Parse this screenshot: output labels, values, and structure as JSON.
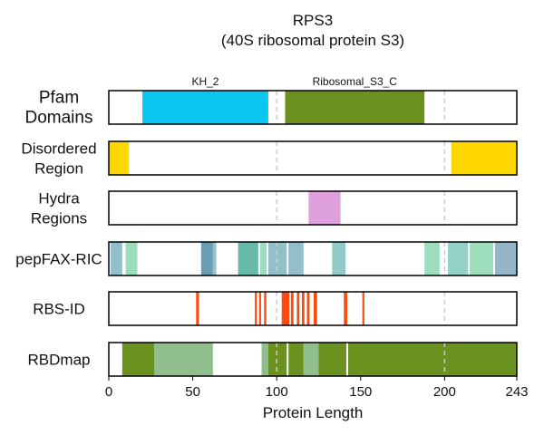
{
  "chart_data": {
    "type": "feature-track",
    "title": "RPS3",
    "subtitle": "(40S ribosomal protein S3)",
    "xlabel": "Protein Length",
    "xlim": [
      0,
      243
    ],
    "xticks": [
      0,
      50,
      100,
      150,
      200,
      243
    ],
    "reference_lines": [
      100,
      200
    ],
    "tracks": [
      {
        "id": "pfam",
        "label": [
          "Pfam",
          "Domains"
        ],
        "segments": [
          {
            "start": 20,
            "end": 95,
            "color": "#0BC6EE",
            "label": "KH_2"
          },
          {
            "start": 105,
            "end": 188,
            "color": "#6B921E",
            "label": "Ribosomal_S3_C"
          }
        ]
      },
      {
        "id": "disordered",
        "label": [
          "Disordered",
          "Region"
        ],
        "segments": [
          {
            "start": 0,
            "end": 12,
            "color": "#FFD700"
          },
          {
            "start": 204,
            "end": 243,
            "color": "#FFD700"
          }
        ]
      },
      {
        "id": "hydra",
        "label": [
          "Hydra",
          "Regions"
        ],
        "segments": [
          {
            "start": 119,
            "end": 138,
            "color": "#DDA0DD"
          }
        ]
      },
      {
        "id": "pepfax",
        "label": [
          "pepFAX-RIC"
        ],
        "segments": [
          {
            "start": 1,
            "end": 8,
            "color": "#93BFC9"
          },
          {
            "start": 10,
            "end": 17,
            "color": "#9DDDBE"
          },
          {
            "start": 55,
            "end": 62,
            "color": "#6A9DB2"
          },
          {
            "start": 62,
            "end": 64,
            "color": "#93BFC9"
          },
          {
            "start": 77,
            "end": 89,
            "color": "#67BAA8"
          },
          {
            "start": 90,
            "end": 94,
            "color": "#9DDDBE"
          },
          {
            "start": 95,
            "end": 106,
            "color": "#93BFC9"
          },
          {
            "start": 107,
            "end": 116,
            "color": "#93BFC9"
          },
          {
            "start": 133,
            "end": 141,
            "color": "#93CAC7"
          },
          {
            "start": 188,
            "end": 197,
            "color": "#9DDDBE"
          },
          {
            "start": 202,
            "end": 214,
            "color": "#93D2C4"
          },
          {
            "start": 215,
            "end": 229,
            "color": "#9DDDBE"
          },
          {
            "start": 230,
            "end": 243,
            "color": "#96B5C9"
          }
        ]
      },
      {
        "id": "rbsid",
        "label": [
          "RBS-ID"
        ],
        "segments": [
          {
            "start": 52,
            "end": 53.7,
            "color": "#FF4A0D"
          },
          {
            "start": 87,
            "end": 88.2,
            "color": "#FF4A0D"
          },
          {
            "start": 89.5,
            "end": 90.7,
            "color": "#FF4A0D"
          },
          {
            "start": 92.5,
            "end": 93.8,
            "color": "#FF4A0D"
          },
          {
            "start": 103,
            "end": 107.5,
            "color": "#FF4A0D"
          },
          {
            "start": 108.5,
            "end": 110,
            "color": "#FF4A0D"
          },
          {
            "start": 112,
            "end": 113.5,
            "color": "#FF4A0D"
          },
          {
            "start": 115,
            "end": 116.5,
            "color": "#FF4A0D"
          },
          {
            "start": 118,
            "end": 119.5,
            "color": "#FF4A0D"
          },
          {
            "start": 122,
            "end": 124,
            "color": "#FF4A0D"
          },
          {
            "start": 140,
            "end": 142,
            "color": "#FF4A0D"
          },
          {
            "start": 151,
            "end": 152.2,
            "color": "#FF4A0D"
          }
        ]
      },
      {
        "id": "rbdmap",
        "label": [
          "RBDmap"
        ],
        "segments": [
          {
            "start": 8,
            "end": 27,
            "color": "#6B921E"
          },
          {
            "start": 27,
            "end": 62,
            "color": "#90BE8C"
          },
          {
            "start": 91,
            "end": 95,
            "color": "#90BE8C"
          },
          {
            "start": 95,
            "end": 116,
            "color": "#6B921E"
          },
          {
            "start": 116,
            "end": 125,
            "color": "#90BE8C"
          },
          {
            "start": 125,
            "end": 243,
            "color": "#6B921E"
          }
        ],
        "gaps": [
          106.5,
          142
        ]
      }
    ]
  }
}
